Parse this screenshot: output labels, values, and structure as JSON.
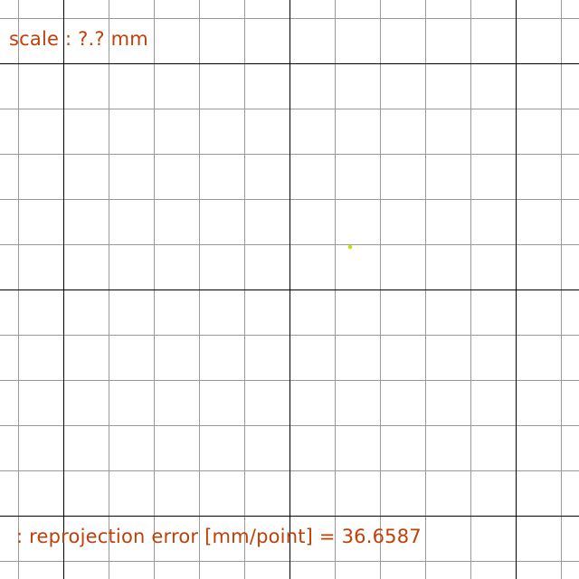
{
  "overlay": {
    "scale_label": "scale : ?.? mm",
    "error_label": ": reprojection error [mm/point] = 36.6587"
  },
  "colors": {
    "text": "#c0400a",
    "point": "#c8e000",
    "minor_grid": "#999999",
    "major_grid": "#000000",
    "background": "#ffffff"
  }
}
